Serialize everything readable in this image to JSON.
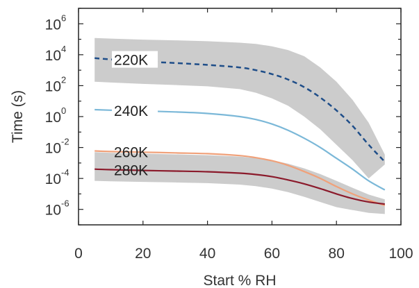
{
  "chart_data": {
    "type": "line",
    "title": "",
    "xlabel": "Start % RH",
    "ylabel": "Time (s)",
    "xlim": [
      0,
      100
    ],
    "ylim": [
      1e-07,
      10000000.0
    ],
    "yscale": "log",
    "grid": false,
    "legend": "none",
    "xticks": [
      0,
      20,
      40,
      60,
      80,
      100
    ],
    "yticks": [
      {
        "base": "10",
        "exp": "6",
        "value": 1000000.0
      },
      {
        "base": "10",
        "exp": "4",
        "value": 10000.0
      },
      {
        "base": "10",
        "exp": "2",
        "value": 100.0
      },
      {
        "base": "10",
        "exp": "0",
        "value": 1
      },
      {
        "base": "10",
        "exp": "-2",
        "value": 0.01
      },
      {
        "base": "10",
        "exp": "-4",
        "value": 0.0001
      },
      {
        "base": "10",
        "exp": "-6",
        "value": 1e-06
      }
    ],
    "x": [
      5,
      10,
      20,
      30,
      40,
      50,
      55,
      60,
      65,
      70,
      75,
      80,
      85,
      90,
      95
    ],
    "series": [
      {
        "label": "220K",
        "color": "#1f4e89",
        "dash": true,
        "values": [
          6000,
          5000,
          3700,
          2900,
          2200,
          1500,
          1000,
          560,
          250,
          80,
          17,
          2.5,
          0.25,
          0.015,
          0.0012
        ]
      },
      {
        "label": "240K",
        "color": "#7bb8d8",
        "dash": false,
        "values": [
          2.8,
          2.6,
          2.3,
          2.0,
          1.6,
          1.0,
          0.65,
          0.33,
          0.13,
          0.04,
          0.01,
          0.002,
          0.0004,
          7e-05,
          1.8e-05
        ]
      },
      {
        "label": "260K",
        "color": "#f0a17a",
        "dash": false,
        "values": [
          0.006,
          0.0055,
          0.005,
          0.0045,
          0.004,
          0.003,
          0.0022,
          0.0014,
          0.0007,
          0.00028,
          0.0001,
          3e-05,
          1e-05,
          4e-06,
          1.8e-06
        ]
      },
      {
        "label": "280K",
        "color": "#8b1a2b",
        "dash": false,
        "values": [
          0.0004,
          0.00037,
          0.00033,
          0.0003,
          0.00027,
          0.00022,
          0.00018,
          0.00013,
          8e-05,
          4.5e-05,
          2.2e-05,
          1e-05,
          5e-06,
          3e-06,
          2.2e-06
        ]
      }
    ],
    "bands": [
      {
        "name": "band-220K",
        "color": "#cccccc",
        "upper": [
          120000,
          110000,
          95000,
          85000,
          75000,
          60000,
          50000,
          35000,
          20000,
          8000,
          1500,
          180,
          12,
          0.4,
          0.0035
        ],
        "lower": [
          180,
          160,
          130,
          110,
          90,
          60,
          35,
          15,
          5,
          1,
          0.15,
          0.015,
          0.0015,
          0.0001,
          0.0008
        ]
      },
      {
        "name": "band-280K",
        "color": "#cccccc",
        "upper": [
          0.005,
          0.0045,
          0.004,
          0.0036,
          0.0032,
          0.0026,
          0.0021,
          0.0015,
          0.0009,
          0.00045,
          0.00019,
          7e-05,
          2.5e-05,
          9e-06,
          4.5e-06
        ],
        "lower": [
          7e-05,
          6.5e-05,
          6e-05,
          5.5e-05,
          5e-05,
          4e-05,
          3.2e-05,
          2.2e-05,
          1.3e-05,
          6.5e-06,
          3e-06,
          1.4e-06,
          9e-07,
          6e-07,
          5e-07
        ]
      }
    ]
  }
}
